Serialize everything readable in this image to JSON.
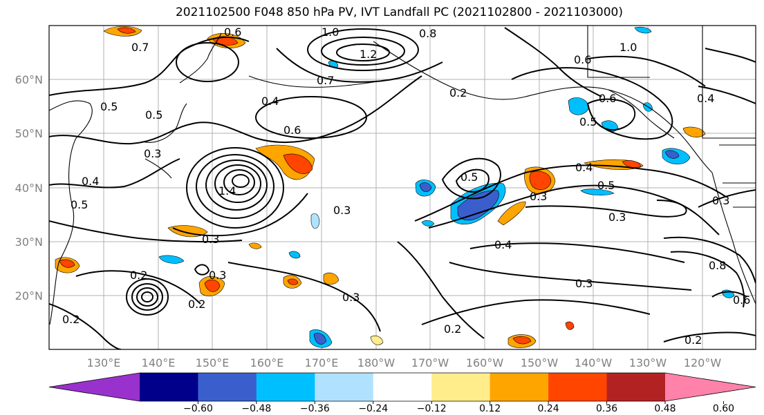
{
  "title": "2021102500 F048 850 hPa PV, IVT Landfall PC (2021102800 - 2021103000)",
  "lat_labels": [
    "60°N",
    "50°N",
    "40°N",
    "30°N",
    "20°N"
  ],
  "lon_labels": [
    "130°E",
    "140°E",
    "150°E",
    "160°E",
    "170°E",
    "180°W",
    "170°W",
    "160°W",
    "150°W",
    "140°W",
    "130°W",
    "120°W"
  ],
  "colorbar": {
    "ticks": [
      "−0.60",
      "−0.48",
      "−0.36",
      "−0.24",
      "−0.12",
      "0.12",
      "0.24",
      "0.36",
      "0.48",
      "0.60"
    ],
    "colors": [
      "#9932cc",
      "#00008b",
      "#3a5fcd",
      "#00bfff",
      "#b0e2ff",
      "#ffffff",
      "#ffec8b",
      "#ffa500",
      "#ff4500",
      "#b22222",
      "#ff82ab"
    ]
  },
  "contour_labels": [
    "0.6",
    "0.8",
    "1.0",
    "0.7",
    "1.2",
    "0.7",
    "0.5",
    "0.3",
    "0.4",
    "0.5",
    "0.6",
    "0.4",
    "0.5",
    "1.4",
    "0.3",
    "0.3",
    "0.2",
    "0.3",
    "0.2",
    "0.2",
    "0.3",
    "0.4",
    "0.3",
    "0.5",
    "0.4",
    "0.5",
    "0.3",
    "0.3",
    "0.2",
    "0.8",
    "0.6",
    "1.0",
    "0.4",
    "0.6",
    "0.5",
    "0.3",
    "0.6",
    "0.2",
    "0.2"
  ]
}
